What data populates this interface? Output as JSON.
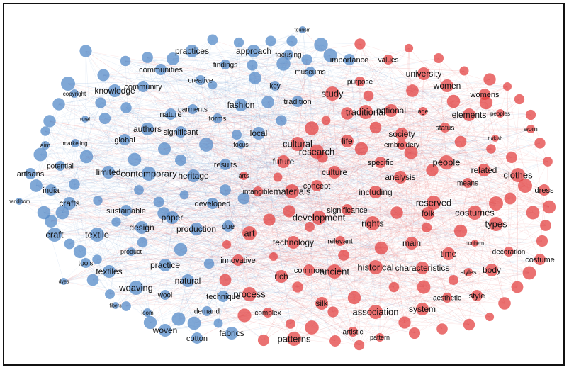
{
  "colors": {
    "blue": "#4f86c6",
    "red": "#e23b3b",
    "edge_blue": "#6f9fd3",
    "edge_red": "#e86a6a"
  },
  "network": {
    "blue_words": [
      "tourism",
      "practices",
      "approach",
      "focusing",
      "importance",
      "findings",
      "communities",
      "creative",
      "community",
      "museums",
      "key",
      "copyright",
      "knowledge",
      "tradition",
      "rural",
      "garments",
      "fashion",
      "nature",
      "forms",
      "authors",
      "significant",
      "local",
      "marketing",
      "aim",
      "global",
      "focus",
      "potential",
      "artisans",
      "limited",
      "contemporary",
      "heritage",
      "results",
      "india",
      "handloom",
      "crafts",
      "sustainable",
      "paper",
      "developed",
      "craft",
      "textile",
      "design",
      "production",
      "due",
      "product",
      "tools",
      "practice",
      "textiles",
      "natural",
      "wool",
      "weaving",
      "technique",
      "fibers",
      "loom",
      "demand",
      "dyes",
      "woven",
      "cotton",
      "fabrics"
    ],
    "red_words": [
      "values",
      "university",
      "women",
      "womens",
      "purpose",
      "study",
      "traditional",
      "national",
      "age",
      "elements",
      "peoples",
      "worn",
      "status",
      "turkish",
      "society",
      "embroidery",
      "life",
      "cultural",
      "research",
      "specific",
      "people",
      "related",
      "clothes",
      "future",
      "arts",
      "culture",
      "analysis",
      "means",
      "dress",
      "intangible",
      "materials",
      "concept",
      "including",
      "reserved",
      "significance",
      "development",
      "folk",
      "costumes",
      "rights",
      "types",
      "art",
      "technology",
      "relevant",
      "main",
      "northern",
      "decoration",
      "time",
      "innovative",
      "costume",
      "rich",
      "common",
      "ancient",
      "historical",
      "characteristics",
      "styles",
      "body",
      "process",
      "silk",
      "aesthetic",
      "style",
      "complex",
      "association",
      "system",
      "patterns",
      "artistic",
      "pattern"
    ]
  }
}
